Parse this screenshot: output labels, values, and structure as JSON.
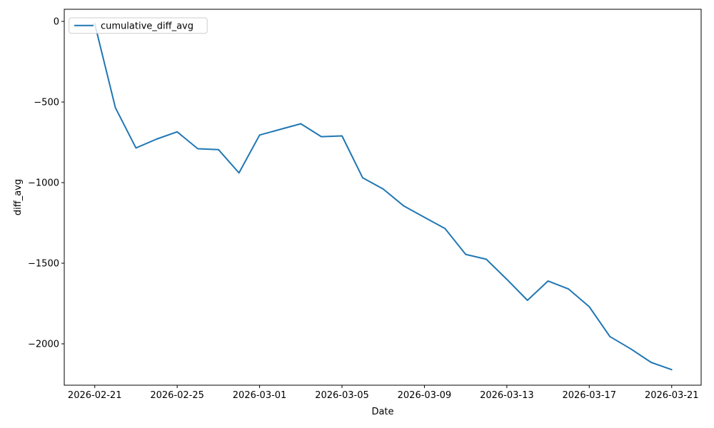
{
  "figure": {
    "background": "#ffffff"
  },
  "chart_data": {
    "type": "line",
    "title": "",
    "xlabel": "Date",
    "ylabel": "diff_avg",
    "grid": false,
    "legend": {
      "label": "cumulative_diff_avg",
      "position": "upper-left"
    },
    "line_color": "#1f77b4",
    "x": [
      "2026-02-21",
      "2026-02-22",
      "2026-02-23",
      "2026-02-24",
      "2026-02-25",
      "2026-02-26",
      "2026-02-27",
      "2026-02-28",
      "2026-03-01",
      "2026-03-02",
      "2026-03-03",
      "2026-03-04",
      "2026-03-05",
      "2026-03-06",
      "2026-03-07",
      "2026-03-08",
      "2026-03-09",
      "2026-03-10",
      "2026-03-11",
      "2026-03-12",
      "2026-03-13",
      "2026-03-14",
      "2026-03-15",
      "2026-03-16",
      "2026-03-17",
      "2026-03-18",
      "2026-03-19",
      "2026-03-20",
      "2026-03-21"
    ],
    "series": [
      {
        "name": "cumulative_diff_avg",
        "values": [
          -15,
          -535,
          -785,
          -730,
          -685,
          -790,
          -795,
          -940,
          -705,
          -670,
          -635,
          -715,
          -710,
          -970,
          -1040,
          -1145,
          -1215,
          -1285,
          -1445,
          -1475,
          -1600,
          -1730,
          -1610,
          -1660,
          -1770,
          -1955,
          -2030,
          -2115,
          -2160
        ]
      }
    ],
    "x_tick_labels": [
      "2026-02-21",
      "2026-02-25",
      "2026-03-01",
      "2026-03-05",
      "2026-03-09",
      "2026-03-13",
      "2026-03-17",
      "2026-03-21"
    ],
    "y_ticks": [
      0,
      -500,
      -1000,
      -1500,
      -2000
    ],
    "xlim_days": [
      -1.48,
      29.43
    ],
    "ylim": [
      -2256.6,
      75.2
    ]
  }
}
